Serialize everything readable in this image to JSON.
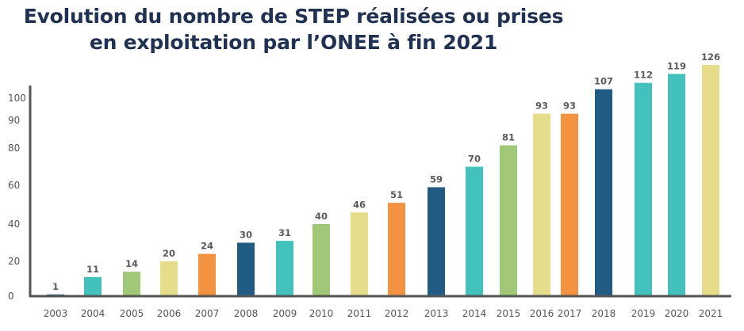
{
  "chart_data": {
    "type": "bar",
    "title": "Evolution du nombre de STEP réalisées ou prises\nen exploitation par l’ONEE à fin 2021",
    "title_line1": "Evolution du nombre de STEP réalisées ou prises",
    "title_line2": "en exploitation par l’ONEE à fin 2021",
    "categories": [
      "2003",
      "2004",
      "2005",
      "2006",
      "2007",
      "2008",
      "2009",
      "2010",
      "2011",
      "2012",
      "2013",
      "2014",
      "2015",
      "2016",
      "2017",
      "2018",
      "2019",
      "2020",
      "2021"
    ],
    "values": [
      1,
      11,
      14,
      20,
      24,
      30,
      31,
      40,
      46,
      51,
      59,
      70,
      81,
      93,
      93,
      107,
      112,
      119,
      126
    ],
    "bar_colors": [
      "#215a82",
      "#43c2bd",
      "#a0c878",
      "#e6dd8a",
      "#f39241",
      "#215a82",
      "#43c2bd",
      "#a0c878",
      "#e6dd8a",
      "#f39241",
      "#215a82",
      "#43c2bd",
      "#a0c878",
      "#e6dd8a",
      "#f39241",
      "#215a82",
      "#43c2bd",
      "#43c2bd",
      "#e6dd8a"
    ],
    "y_ticks": [
      "0",
      "20",
      "40",
      "60",
      "80",
      "90",
      "100"
    ],
    "xlabel": "",
    "ylabel": "",
    "grid": false
  },
  "colors": {
    "title": "#203152",
    "axis": "#555555",
    "label": "#5a5a5a"
  }
}
